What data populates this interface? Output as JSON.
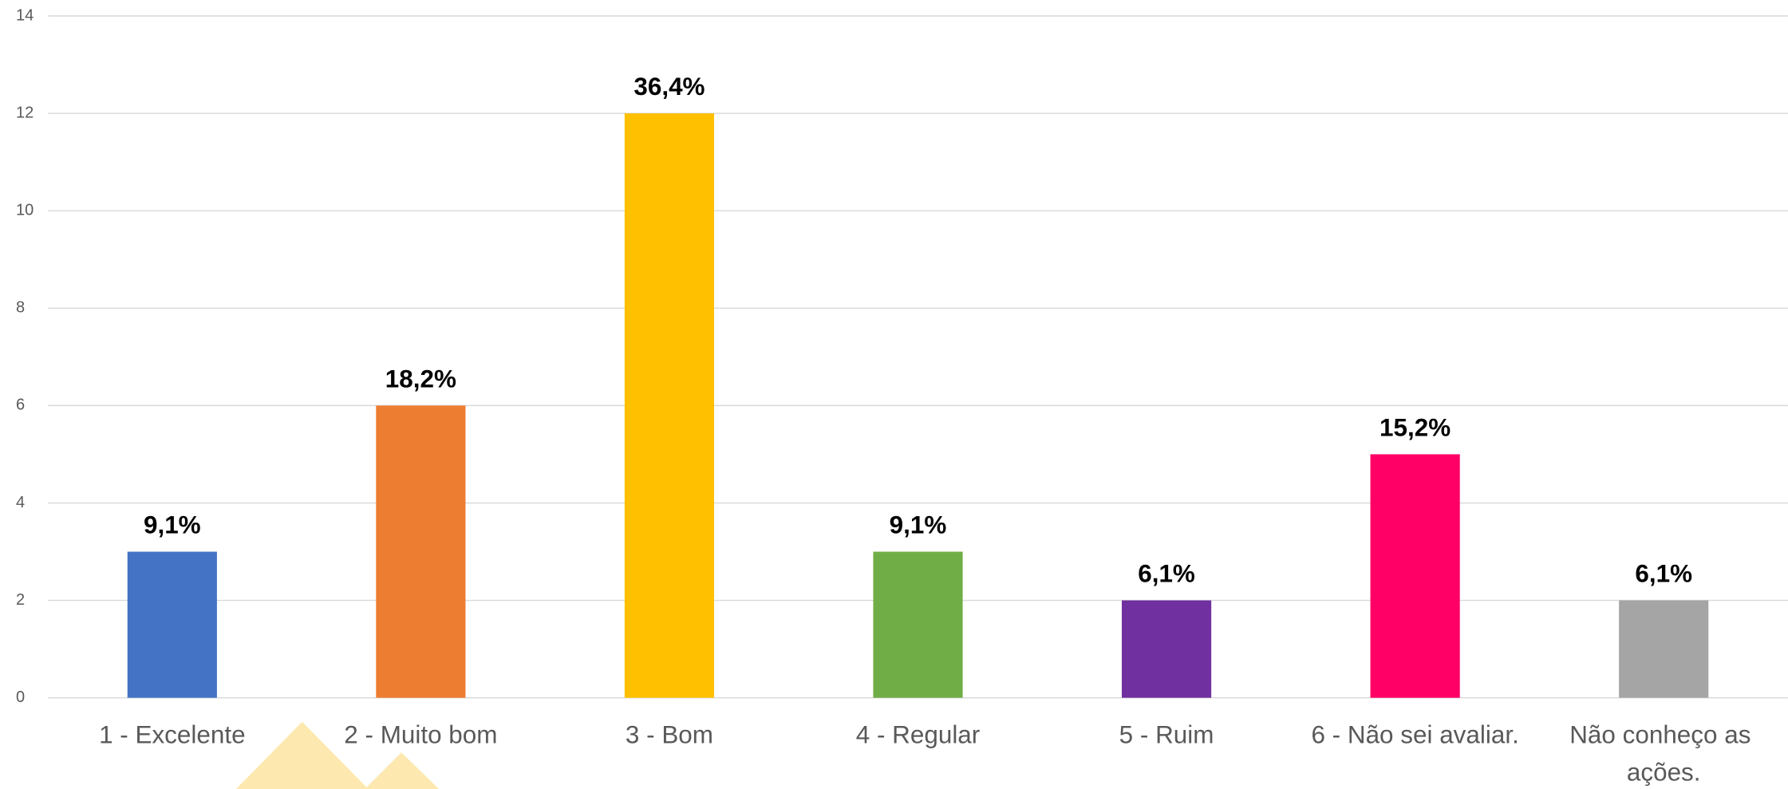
{
  "chart_data": {
    "type": "bar",
    "categories": [
      "1 - Excelente",
      "2 - Muito bom",
      "3 - Bom",
      "4 - Regular",
      "5 - Ruim",
      "6 - Não sei avaliar.",
      "Não conheço as ações."
    ],
    "values": [
      3,
      6,
      12,
      3,
      2,
      5,
      2
    ],
    "value_labels": [
      "9,1%",
      "18,2%",
      "36,4%",
      "9,1%",
      "6,1%",
      "15,2%",
      "6,1%"
    ],
    "colors": [
      "#4472c4",
      "#ed7d31",
      "#ffc000",
      "#70ad47",
      "#7030a0",
      "#ff0066",
      "#a5a5a5"
    ],
    "ylim": [
      0,
      14
    ],
    "yticks": [
      0,
      2,
      4,
      6,
      8,
      10,
      12,
      14
    ],
    "grid": true
  }
}
